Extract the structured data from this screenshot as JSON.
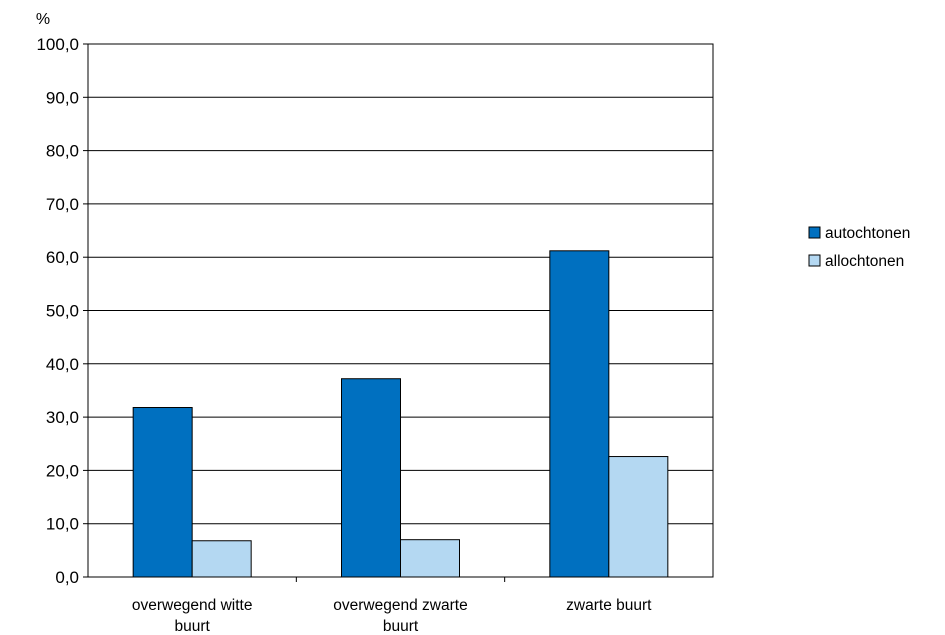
{
  "chart_data": {
    "type": "bar",
    "unit_label": "%",
    "categories": [
      [
        "overwegend witte",
        "buurt"
      ],
      [
        "overwegend zwarte",
        "buurt"
      ],
      [
        "zwarte buurt"
      ]
    ],
    "series": [
      {
        "name": "autochtonen",
        "values": [
          31.8,
          37.2,
          61.2
        ],
        "color": "#0070c0"
      },
      {
        "name": "allochtonen",
        "values": [
          6.8,
          7.0,
          22.6
        ],
        "color": "#b4d8f2"
      }
    ],
    "ylim": [
      0,
      100
    ],
    "yticks": [
      "0,0",
      "10,0",
      "20,0",
      "30,0",
      "40,0",
      "50,0",
      "60,0",
      "70,0",
      "80,0",
      "90,0",
      "100,0"
    ],
    "grid": true,
    "legend_position": "right"
  }
}
